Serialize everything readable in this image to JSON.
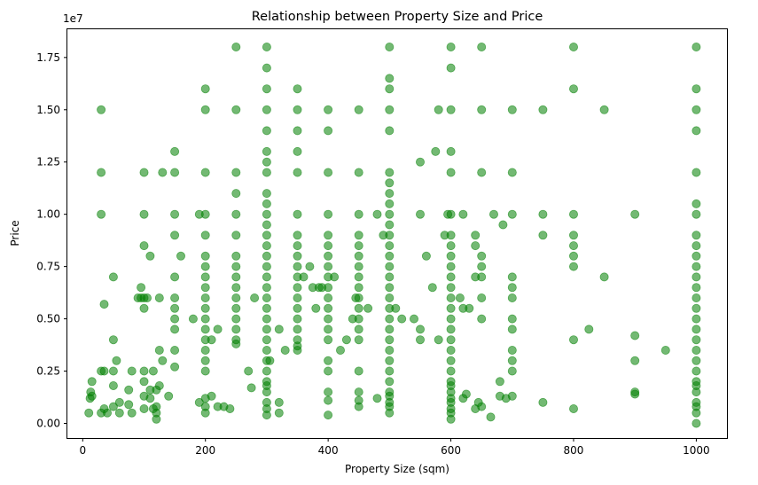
{
  "chart_data": {
    "type": "scatter",
    "title": "Relationship between Property Size and Price",
    "xlabel": "Property Size (sqm)",
    "ylabel": "Price",
    "y_offset_label": "1e7",
    "xlim": [
      -25,
      1050
    ],
    "ylim": [
      -700000,
      18850000
    ],
    "x_ticks": [
      0,
      200,
      400,
      600,
      800,
      1000
    ],
    "x_tick_labels": [
      "0",
      "200",
      "400",
      "600",
      "800",
      "1000"
    ],
    "y_ticks": [
      0,
      2500000,
      5000000,
      7500000,
      10000000,
      12500000,
      15000000,
      17500000
    ],
    "y_tick_labels": [
      "0.00",
      "0.25",
      "0.50",
      "0.75",
      "1.00",
      "1.25",
      "1.50",
      "1.75"
    ],
    "grid": false,
    "marker_color": "#008000",
    "marker_alpha": 0.55,
    "points": [
      [
        10,
        500000
      ],
      [
        12,
        1200000
      ],
      [
        13,
        1500000
      ],
      [
        15,
        2000000
      ],
      [
        15,
        1300000
      ],
      [
        30,
        15000000
      ],
      [
        30,
        12000000
      ],
      [
        30,
        10000000
      ],
      [
        30,
        2500000
      ],
      [
        30,
        500000
      ],
      [
        35,
        5700000
      ],
      [
        35,
        2500000
      ],
      [
        35,
        700000
      ],
      [
        40,
        500000
      ],
      [
        50,
        7000000
      ],
      [
        50,
        4000000
      ],
      [
        50,
        2500000
      ],
      [
        50,
        1800000
      ],
      [
        50,
        800000
      ],
      [
        55,
        3000000
      ],
      [
        60,
        1000000
      ],
      [
        60,
        500000
      ],
      [
        75,
        1600000
      ],
      [
        75,
        900000
      ],
      [
        80,
        2500000
      ],
      [
        80,
        500000
      ],
      [
        90,
        6000000
      ],
      [
        95,
        6500000
      ],
      [
        95,
        6000000
      ],
      [
        100,
        12000000
      ],
      [
        100,
        10000000
      ],
      [
        100,
        8500000
      ],
      [
        100,
        6000000
      ],
      [
        100,
        5500000
      ],
      [
        100,
        2500000
      ],
      [
        100,
        2000000
      ],
      [
        100,
        1300000
      ],
      [
        100,
        700000
      ],
      [
        105,
        6000000
      ],
      [
        110,
        8000000
      ],
      [
        110,
        1600000
      ],
      [
        110,
        1200000
      ],
      [
        115,
        2500000
      ],
      [
        115,
        700000
      ],
      [
        120,
        1600000
      ],
      [
        120,
        800000
      ],
      [
        120,
        500000
      ],
      [
        120,
        200000
      ],
      [
        125,
        6000000
      ],
      [
        125,
        3500000
      ],
      [
        125,
        1800000
      ],
      [
        130,
        12000000
      ],
      [
        130,
        3000000
      ],
      [
        140,
        1300000
      ],
      [
        150,
        13000000
      ],
      [
        150,
        12000000
      ],
      [
        150,
        10000000
      ],
      [
        150,
        9000000
      ],
      [
        150,
        7000000
      ],
      [
        150,
        6000000
      ],
      [
        150,
        5500000
      ],
      [
        150,
        5000000
      ],
      [
        150,
        4500000
      ],
      [
        150,
        3500000
      ],
      [
        150,
        2700000
      ],
      [
        160,
        8000000
      ],
      [
        180,
        5000000
      ],
      [
        190,
        10000000
      ],
      [
        190,
        1000000
      ],
      [
        200,
        16000000
      ],
      [
        200,
        15000000
      ],
      [
        200,
        12000000
      ],
      [
        200,
        10000000
      ],
      [
        200,
        9000000
      ],
      [
        200,
        8000000
      ],
      [
        200,
        7500000
      ],
      [
        200,
        7000000
      ],
      [
        200,
        6500000
      ],
      [
        200,
        6000000
      ],
      [
        200,
        5500000
      ],
      [
        200,
        5000000
      ],
      [
        200,
        4500000
      ],
      [
        200,
        4000000
      ],
      [
        200,
        3500000
      ],
      [
        200,
        3000000
      ],
      [
        200,
        2500000
      ],
      [
        200,
        1200000
      ],
      [
        200,
        800000
      ],
      [
        200,
        500000
      ],
      [
        210,
        4000000
      ],
      [
        210,
        1300000
      ],
      [
        220,
        4500000
      ],
      [
        220,
        800000
      ],
      [
        230,
        800000
      ],
      [
        240,
        700000
      ],
      [
        250,
        18000000
      ],
      [
        250,
        15000000
      ],
      [
        250,
        12000000
      ],
      [
        250,
        11000000
      ],
      [
        250,
        10000000
      ],
      [
        250,
        9000000
      ],
      [
        250,
        8000000
      ],
      [
        250,
        7500000
      ],
      [
        250,
        7000000
      ],
      [
        250,
        6500000
      ],
      [
        250,
        6000000
      ],
      [
        250,
        5500000
      ],
      [
        250,
        5000000
      ],
      [
        250,
        4500000
      ],
      [
        250,
        4000000
      ],
      [
        250,
        3800000
      ],
      [
        270,
        2500000
      ],
      [
        275,
        1700000
      ],
      [
        280,
        6000000
      ],
      [
        300,
        18000000
      ],
      [
        300,
        17000000
      ],
      [
        300,
        16000000
      ],
      [
        300,
        15000000
      ],
      [
        300,
        14000000
      ],
      [
        300,
        13000000
      ],
      [
        300,
        12500000
      ],
      [
        300,
        12000000
      ],
      [
        300,
        11000000
      ],
      [
        300,
        10500000
      ],
      [
        300,
        10000000
      ],
      [
        300,
        9500000
      ],
      [
        300,
        9000000
      ],
      [
        300,
        8500000
      ],
      [
        300,
        8000000
      ],
      [
        300,
        7500000
      ],
      [
        300,
        7000000
      ],
      [
        300,
        6500000
      ],
      [
        300,
        6000000
      ],
      [
        300,
        5500000
      ],
      [
        300,
        5000000
      ],
      [
        300,
        4500000
      ],
      [
        300,
        4000000
      ],
      [
        300,
        3500000
      ],
      [
        300,
        3000000
      ],
      [
        300,
        2500000
      ],
      [
        300,
        2000000
      ],
      [
        300,
        1800000
      ],
      [
        300,
        1500000
      ],
      [
        300,
        1000000
      ],
      [
        300,
        700000
      ],
      [
        300,
        400000
      ],
      [
        305,
        3000000
      ],
      [
        320,
        4500000
      ],
      [
        320,
        1000000
      ],
      [
        320,
        500000
      ],
      [
        330,
        3500000
      ],
      [
        350,
        16000000
      ],
      [
        350,
        15000000
      ],
      [
        350,
        14000000
      ],
      [
        350,
        13000000
      ],
      [
        350,
        12000000
      ],
      [
        350,
        10000000
      ],
      [
        350,
        9000000
      ],
      [
        350,
        8500000
      ],
      [
        350,
        8000000
      ],
      [
        350,
        7500000
      ],
      [
        350,
        7000000
      ],
      [
        350,
        6500000
      ],
      [
        350,
        6000000
      ],
      [
        350,
        5500000
      ],
      [
        350,
        5000000
      ],
      [
        350,
        4500000
      ],
      [
        350,
        4000000
      ],
      [
        350,
        3700000
      ],
      [
        350,
        3500000
      ],
      [
        360,
        7000000
      ],
      [
        370,
        7500000
      ],
      [
        375,
        6500000
      ],
      [
        380,
        5500000
      ],
      [
        385,
        6500000
      ],
      [
        390,
        6500000
      ],
      [
        400,
        15000000
      ],
      [
        400,
        14000000
      ],
      [
        400,
        12000000
      ],
      [
        400,
        10000000
      ],
      [
        400,
        9000000
      ],
      [
        400,
        8500000
      ],
      [
        400,
        8000000
      ],
      [
        400,
        7500000
      ],
      [
        400,
        7000000
      ],
      [
        400,
        6500000
      ],
      [
        400,
        6000000
      ],
      [
        400,
        5500000
      ],
      [
        400,
        5000000
      ],
      [
        400,
        4500000
      ],
      [
        400,
        4000000
      ],
      [
        400,
        3000000
      ],
      [
        400,
        2500000
      ],
      [
        400,
        1500000
      ],
      [
        400,
        1100000
      ],
      [
        400,
        400000
      ],
      [
        410,
        7000000
      ],
      [
        420,
        3500000
      ],
      [
        430,
        4000000
      ],
      [
        440,
        5000000
      ],
      [
        445,
        6000000
      ],
      [
        450,
        15000000
      ],
      [
        450,
        12000000
      ],
      [
        450,
        10000000
      ],
      [
        450,
        9000000
      ],
      [
        450,
        8500000
      ],
      [
        450,
        8000000
      ],
      [
        450,
        7500000
      ],
      [
        450,
        7000000
      ],
      [
        450,
        6500000
      ],
      [
        450,
        6000000
      ],
      [
        450,
        5500000
      ],
      [
        450,
        5000000
      ],
      [
        450,
        4500000
      ],
      [
        450,
        4000000
      ],
      [
        450,
        2500000
      ],
      [
        450,
        1500000
      ],
      [
        450,
        1100000
      ],
      [
        450,
        800000
      ],
      [
        465,
        5500000
      ],
      [
        480,
        10000000
      ],
      [
        480,
        1200000
      ],
      [
        490,
        9000000
      ],
      [
        500,
        18000000
      ],
      [
        500,
        16500000
      ],
      [
        500,
        16000000
      ],
      [
        500,
        15000000
      ],
      [
        500,
        14000000
      ],
      [
        500,
        12000000
      ],
      [
        500,
        11500000
      ],
      [
        500,
        11000000
      ],
      [
        500,
        10500000
      ],
      [
        500,
        10000000
      ],
      [
        500,
        9500000
      ],
      [
        500,
        9000000
      ],
      [
        500,
        8500000
      ],
      [
        500,
        8000000
      ],
      [
        500,
        7500000
      ],
      [
        500,
        7000000
      ],
      [
        500,
        6500000
      ],
      [
        500,
        6000000
      ],
      [
        500,
        5500000
      ],
      [
        500,
        5000000
      ],
      [
        500,
        4500000
      ],
      [
        500,
        4000000
      ],
      [
        500,
        3500000
      ],
      [
        500,
        3000000
      ],
      [
        500,
        2500000
      ],
      [
        500,
        2000000
      ],
      [
        500,
        1500000
      ],
      [
        500,
        1300000
      ],
      [
        500,
        1000000
      ],
      [
        500,
        800000
      ],
      [
        500,
        500000
      ],
      [
        510,
        5500000
      ],
      [
        520,
        5000000
      ],
      [
        540,
        5000000
      ],
      [
        550,
        12500000
      ],
      [
        550,
        10000000
      ],
      [
        550,
        4500000
      ],
      [
        550,
        4000000
      ],
      [
        560,
        8000000
      ],
      [
        570,
        6500000
      ],
      [
        575,
        13000000
      ],
      [
        580,
        15000000
      ],
      [
        580,
        4000000
      ],
      [
        590,
        9000000
      ],
      [
        595,
        10000000
      ],
      [
        600,
        18000000
      ],
      [
        600,
        17000000
      ],
      [
        600,
        15000000
      ],
      [
        600,
        13000000
      ],
      [
        600,
        12000000
      ],
      [
        600,
        10000000
      ],
      [
        600,
        9000000
      ],
      [
        600,
        8500000
      ],
      [
        600,
        8000000
      ],
      [
        600,
        7500000
      ],
      [
        600,
        7000000
      ],
      [
        600,
        6500000
      ],
      [
        600,
        6000000
      ],
      [
        600,
        5500000
      ],
      [
        600,
        5000000
      ],
      [
        600,
        4500000
      ],
      [
        600,
        4000000
      ],
      [
        600,
        3500000
      ],
      [
        600,
        3000000
      ],
      [
        600,
        2500000
      ],
      [
        600,
        2000000
      ],
      [
        600,
        1800000
      ],
      [
        600,
        1500000
      ],
      [
        600,
        1200000
      ],
      [
        600,
        1000000
      ],
      [
        600,
        700000
      ],
      [
        600,
        500000
      ],
      [
        600,
        200000
      ],
      [
        615,
        6000000
      ],
      [
        620,
        10000000
      ],
      [
        620,
        5500000
      ],
      [
        620,
        1200000
      ],
      [
        625,
        1400000
      ],
      [
        630,
        5500000
      ],
      [
        640,
        9000000
      ],
      [
        640,
        8500000
      ],
      [
        640,
        7000000
      ],
      [
        640,
        700000
      ],
      [
        645,
        1000000
      ],
      [
        650,
        18000000
      ],
      [
        650,
        15000000
      ],
      [
        650,
        12000000
      ],
      [
        650,
        8000000
      ],
      [
        650,
        7500000
      ],
      [
        650,
        7000000
      ],
      [
        650,
        6000000
      ],
      [
        650,
        5000000
      ],
      [
        650,
        800000
      ],
      [
        665,
        300000
      ],
      [
        670,
        10000000
      ],
      [
        680,
        2000000
      ],
      [
        680,
        1300000
      ],
      [
        685,
        9500000
      ],
      [
        690,
        1200000
      ],
      [
        700,
        15000000
      ],
      [
        700,
        12000000
      ],
      [
        700,
        10000000
      ],
      [
        700,
        7000000
      ],
      [
        700,
        6500000
      ],
      [
        700,
        6000000
      ],
      [
        700,
        5000000
      ],
      [
        700,
        4500000
      ],
      [
        700,
        3500000
      ],
      [
        700,
        3000000
      ],
      [
        700,
        2500000
      ],
      [
        700,
        1300000
      ],
      [
        750,
        15000000
      ],
      [
        750,
        10000000
      ],
      [
        750,
        9000000
      ],
      [
        750,
        1000000
      ],
      [
        800,
        18000000
      ],
      [
        800,
        16000000
      ],
      [
        800,
        10000000
      ],
      [
        800,
        9000000
      ],
      [
        800,
        8500000
      ],
      [
        800,
        8000000
      ],
      [
        800,
        7500000
      ],
      [
        800,
        4000000
      ],
      [
        800,
        700000
      ],
      [
        825,
        4500000
      ],
      [
        850,
        15000000
      ],
      [
        850,
        7000000
      ],
      [
        900,
        10000000
      ],
      [
        900,
        4200000
      ],
      [
        900,
        3000000
      ],
      [
        900,
        1500000
      ],
      [
        900,
        1400000
      ],
      [
        950,
        3500000
      ],
      [
        1000,
        18000000
      ],
      [
        1000,
        16000000
      ],
      [
        1000,
        15000000
      ],
      [
        1000,
        14000000
      ],
      [
        1000,
        12000000
      ],
      [
        1000,
        10500000
      ],
      [
        1000,
        10000000
      ],
      [
        1000,
        9000000
      ],
      [
        1000,
        8500000
      ],
      [
        1000,
        8000000
      ],
      [
        1000,
        7500000
      ],
      [
        1000,
        7000000
      ],
      [
        1000,
        6500000
      ],
      [
        1000,
        6000000
      ],
      [
        1000,
        5500000
      ],
      [
        1000,
        5000000
      ],
      [
        1000,
        4500000
      ],
      [
        1000,
        4000000
      ],
      [
        1000,
        3500000
      ],
      [
        1000,
        3000000
      ],
      [
        1000,
        2500000
      ],
      [
        1000,
        2000000
      ],
      [
        1000,
        1800000
      ],
      [
        1000,
        1500000
      ],
      [
        1000,
        1000000
      ],
      [
        1000,
        800000
      ],
      [
        1000,
        500000
      ],
      [
        1000,
        0
      ]
    ]
  }
}
